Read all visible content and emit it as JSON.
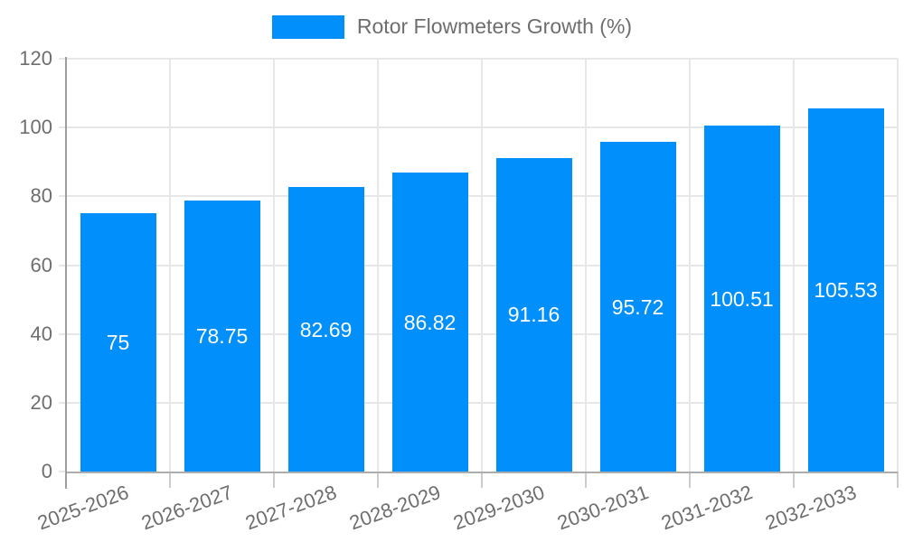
{
  "chart_data": {
    "type": "bar",
    "title": "Rotor Flowmeters Growth (%)",
    "legend_label": "Rotor Flowmeters Growth (%)",
    "legend_position": "top",
    "categories": [
      "2025-2026",
      "2026-2027",
      "2027-2028",
      "2028-2029",
      "2029-2030",
      "2030-2031",
      "2031-2032",
      "2032-2033"
    ],
    "values": [
      75,
      78.75,
      82.69,
      86.82,
      91.16,
      95.72,
      100.51,
      105.53
    ],
    "value_labels": [
      "75",
      "78.75",
      "82.69",
      "86.82",
      "91.16",
      "95.72",
      "100.51",
      "105.53"
    ],
    "xlabel": "",
    "ylabel": "",
    "ylim": [
      0,
      120
    ],
    "yticks": [
      0,
      20,
      40,
      60,
      80,
      100,
      120
    ],
    "grid": true,
    "colors": {
      "bar": "#008FFB",
      "value_label": "#ffffff",
      "axis_text": "#6e6e6e",
      "gridline": "#e7e7e7",
      "axis_line": "#9e9e9e"
    }
  }
}
